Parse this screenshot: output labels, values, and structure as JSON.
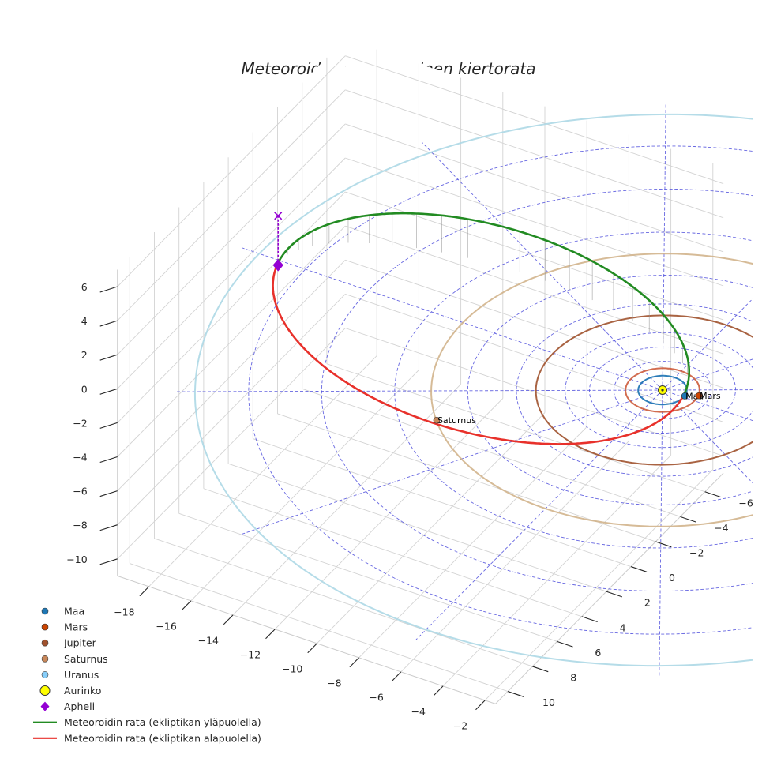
{
  "chart_data": {
    "type": "line",
    "projection": "3d",
    "title": "Meteoroidin heliosentrinen kiertorata",
    "xlabel": "",
    "ylabel": "",
    "zlabel": "",
    "xlim": [
      -19.5,
      -1.5
    ],
    "ylim": [
      -7.5,
      11
    ],
    "zlim": [
      -11,
      7
    ],
    "x_ticks": [
      -18,
      -16,
      -14,
      -12,
      -10,
      -8,
      -6,
      -4,
      -2
    ],
    "y_ticks": [
      -6,
      -4,
      -2,
      0,
      2,
      4,
      6,
      8,
      10
    ],
    "z_ticks": [
      6,
      4,
      2,
      0,
      -2,
      -4,
      -6,
      -8,
      -10
    ],
    "grid": true,
    "ecliptic_reference_grid": "dashed blue rings and radial lines centered on the Sun",
    "legend_position": "bottom-left",
    "sun": {
      "name": "Aurinko",
      "x": 0,
      "y": 0,
      "z": 0,
      "color": "#ffff00"
    },
    "planets": [
      {
        "name": "Maa",
        "orbit_radius_au": 1.0,
        "position_x": 1.0,
        "position_y": -0.1,
        "color": "#1f77b4",
        "orbit_color": "#1f77b4",
        "label_shown": true
      },
      {
        "name": "Mars",
        "orbit_radius_au": 1.52,
        "position_x": 1.5,
        "position_y": -0.4,
        "color": "#cc4400",
        "orbit_color": "#cd5c3c",
        "label_shown": true
      },
      {
        "name": "Jupiter",
        "orbit_radius_au": 5.2,
        "color": "#a0522d",
        "orbit_color": "#a0522d",
        "label_shown": false
      },
      {
        "name": "Saturnus",
        "orbit_radius_au": 9.5,
        "position_x": -7.0,
        "position_y": 6.4,
        "color": "#c8875a",
        "orbit_color": "#d2b48c",
        "label_shown": true
      },
      {
        "name": "Uranus",
        "orbit_radius_au": 19.2,
        "color": "#87cefa",
        "orbit_color": "#add8e6",
        "label_shown": false
      }
    ],
    "meteoroid_orbit": {
      "semi_major_axis_au": 9.6,
      "eccentricity": 0.9,
      "perihelion_direction": "+x",
      "max_height_above_ecliptic": 2.4,
      "aphelion": {
        "x": -18.3,
        "y": 0.0,
        "z": -0.3
      },
      "aphelion_marker_top": {
        "x": -18.3,
        "y": 0.0,
        "z": 2.6
      },
      "series": [
        {
          "name": "Meteoroidin rata (ekliptikan yläpuolella)",
          "color": "#228b22"
        },
        {
          "name": "Meteoroidin rata (ekliptikan alapuolella)",
          "color": "#e8312b"
        }
      ]
    },
    "legend": [
      {
        "label": "Maa",
        "marker": "circle",
        "color": "#1f77b4"
      },
      {
        "label": "Mars",
        "marker": "circle",
        "color": "#cc4400"
      },
      {
        "label": "Jupiter",
        "marker": "circle",
        "color": "#a0522d"
      },
      {
        "label": "Saturnus",
        "marker": "circle",
        "color": "#c8875a"
      },
      {
        "label": "Uranus",
        "marker": "circle",
        "color": "#87cefa"
      },
      {
        "label": "Aurinko",
        "marker": "big-circle",
        "color": "#ffff00"
      },
      {
        "label": "Apheli",
        "marker": "diamond",
        "color": "#9400d3"
      },
      {
        "label": "Meteoroidin rata (ekliptikan yläpuolella)",
        "marker": "line",
        "color": "#228b22"
      },
      {
        "label": "Meteoroidin rata (ekliptikan alapuolella)",
        "marker": "line",
        "color": "#e8312b"
      }
    ]
  }
}
